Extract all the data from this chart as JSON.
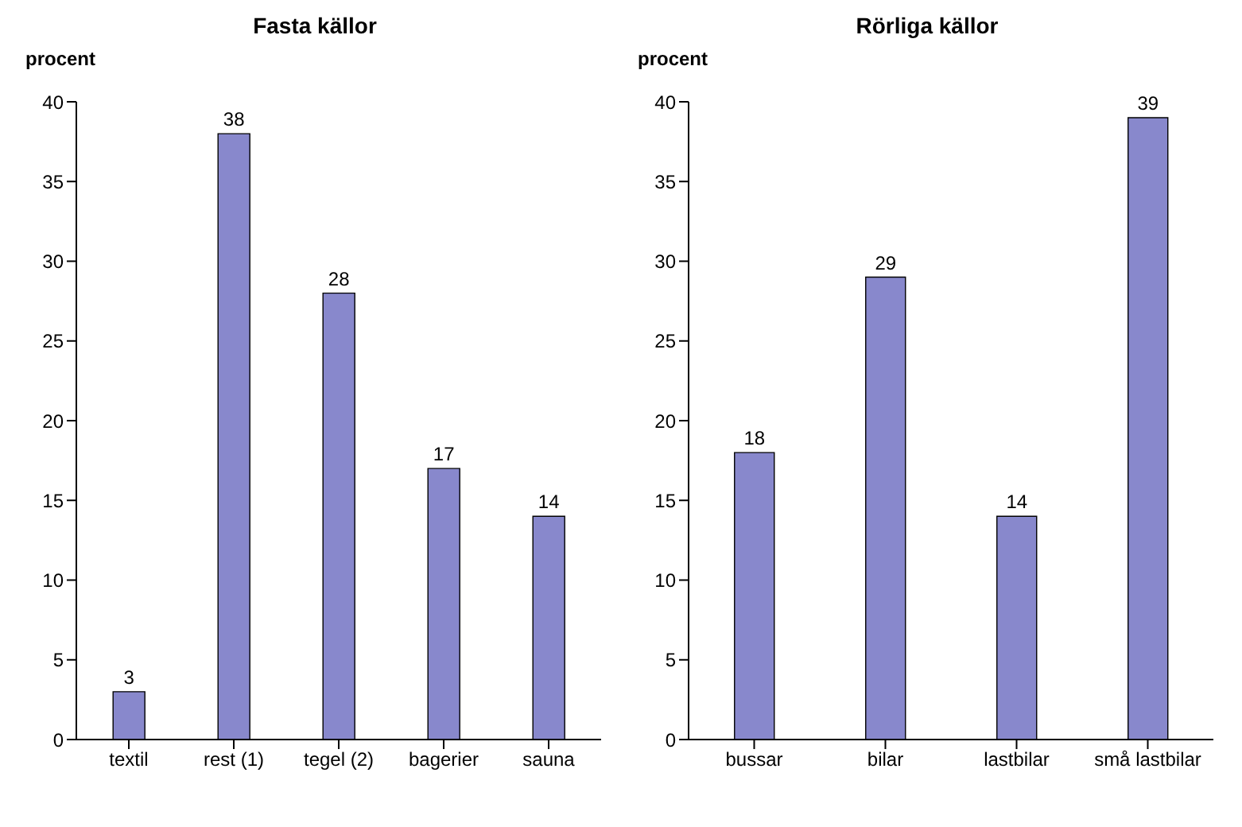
{
  "chart_data": [
    {
      "type": "bar",
      "title": "Fasta källor",
      "ylabel": "procent",
      "categories": [
        "textil",
        "rest (1)",
        "tegel (2)",
        "bagerier",
        "sauna"
      ],
      "values": [
        3,
        38,
        28,
        17,
        14
      ],
      "color": "#8888cc",
      "ylim": [
        0,
        40
      ],
      "yticks": [
        0,
        5,
        10,
        15,
        20,
        25,
        30,
        35,
        40
      ],
      "data_labels": true,
      "grid": false,
      "legend": false
    },
    {
      "type": "bar",
      "title": "Rörliga källor",
      "ylabel": "procent",
      "categories": [
        "bussar",
        "bilar",
        "lastbilar",
        "små lastbilar"
      ],
      "values": [
        18,
        29,
        14,
        39
      ],
      "color": "#8888cc",
      "ylim": [
        0,
        40
      ],
      "yticks": [
        0,
        5,
        10,
        15,
        20,
        25,
        30,
        35,
        40
      ],
      "data_labels": true,
      "grid": false,
      "legend": false
    }
  ]
}
